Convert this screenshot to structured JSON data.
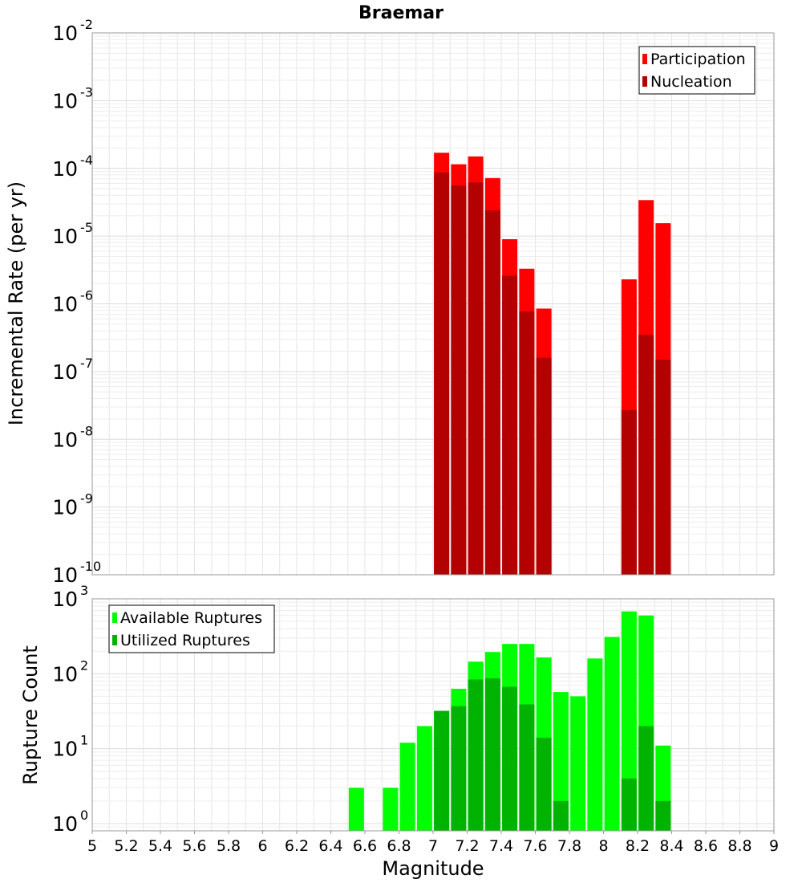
{
  "title": "Braemar",
  "chart_data": [
    {
      "type": "bar",
      "panel": "top",
      "ylabel": "Incremental Rate (per yr)",
      "xlim": [
        5,
        9
      ],
      "ylim": [
        1e-10,
        0.01
      ],
      "yscale": "log",
      "grid": true,
      "legend_position": "top-right",
      "ytick_labels": [
        {
          "value": 1e-10,
          "base": "10",
          "exp": "-10"
        },
        {
          "value": 1e-09,
          "base": "10",
          "exp": "-9"
        },
        {
          "value": 1e-08,
          "base": "10",
          "exp": "-8"
        },
        {
          "value": 1e-07,
          "base": "10",
          "exp": "-7"
        },
        {
          "value": 1e-06,
          "base": "10",
          "exp": "-6"
        },
        {
          "value": 1e-05,
          "base": "10",
          "exp": "-5"
        },
        {
          "value": 0.0001,
          "base": "10",
          "exp": "-4"
        },
        {
          "value": 0.001,
          "base": "10",
          "exp": "-3"
        },
        {
          "value": 0.01,
          "base": "10",
          "exp": "-2"
        }
      ],
      "series": [
        {
          "name": "Participation",
          "color": "#ff0000",
          "points": [
            {
              "x": 7.05,
              "y": 0.00017
            },
            {
              "x": 7.15,
              "y": 0.000115
            },
            {
              "x": 7.25,
              "y": 0.00015
            },
            {
              "x": 7.35,
              "y": 7.2e-05
            },
            {
              "x": 7.45,
              "y": 9e-06
            },
            {
              "x": 7.55,
              "y": 3.3e-06
            },
            {
              "x": 7.65,
              "y": 8.5e-07
            },
            {
              "x": 8.15,
              "y": 2.3e-06
            },
            {
              "x": 8.25,
              "y": 3.4e-05
            },
            {
              "x": 8.35,
              "y": 1.55e-05
            }
          ]
        },
        {
          "name": "Nucleation",
          "color": "#b30000",
          "points": [
            {
              "x": 7.05,
              "y": 8.7e-05
            },
            {
              "x": 7.15,
              "y": 5.6e-05
            },
            {
              "x": 7.25,
              "y": 6.2e-05
            },
            {
              "x": 7.35,
              "y": 2.4e-05
            },
            {
              "x": 7.45,
              "y": 2.6e-06
            },
            {
              "x": 7.55,
              "y": 7.7e-07
            },
            {
              "x": 7.65,
              "y": 1.6e-07
            },
            {
              "x": 8.15,
              "y": 2.7e-08
            },
            {
              "x": 8.25,
              "y": 3.5e-07
            },
            {
              "x": 8.35,
              "y": 1.5e-07
            }
          ]
        }
      ]
    },
    {
      "type": "bar",
      "panel": "bottom",
      "xlabel": "Magnitude",
      "ylabel": "Rupture Count",
      "xlim": [
        5,
        9
      ],
      "ylim": [
        0.8,
        1000
      ],
      "yscale": "log",
      "grid": true,
      "legend_position": "top-left",
      "xticks": [
        "5",
        "5.2",
        "5.4",
        "5.6",
        "5.8",
        "6",
        "6.2",
        "6.4",
        "6.6",
        "6.8",
        "7",
        "7.2",
        "7.4",
        "7.6",
        "7.8",
        "8",
        "8.2",
        "8.4",
        "8.6",
        "8.8",
        "9"
      ],
      "ytick_labels": [
        {
          "value": 1,
          "base": "10",
          "exp": "0"
        },
        {
          "value": 10,
          "base": "10",
          "exp": "1"
        },
        {
          "value": 100,
          "base": "10",
          "exp": "2"
        },
        {
          "value": 1000,
          "base": "10",
          "exp": "3"
        }
      ],
      "series": [
        {
          "name": "Available Ruptures",
          "color": "#00ff00",
          "points": [
            {
              "x": 6.55,
              "y": 3
            },
            {
              "x": 6.75,
              "y": 3
            },
            {
              "x": 6.85,
              "y": 12
            },
            {
              "x": 6.95,
              "y": 20
            },
            {
              "x": 7.05,
              "y": 32
            },
            {
              "x": 7.15,
              "y": 63
            },
            {
              "x": 7.25,
              "y": 145
            },
            {
              "x": 7.35,
              "y": 195
            },
            {
              "x": 7.45,
              "y": 250
            },
            {
              "x": 7.55,
              "y": 250
            },
            {
              "x": 7.65,
              "y": 165
            },
            {
              "x": 7.75,
              "y": 57
            },
            {
              "x": 7.85,
              "y": 50
            },
            {
              "x": 7.95,
              "y": 160
            },
            {
              "x": 8.05,
              "y": 310
            },
            {
              "x": 8.15,
              "y": 680
            },
            {
              "x": 8.25,
              "y": 600
            },
            {
              "x": 8.35,
              "y": 11
            }
          ]
        },
        {
          "name": "Utilized Ruptures",
          "color": "#00b300",
          "points": [
            {
              "x": 7.05,
              "y": 32
            },
            {
              "x": 7.15,
              "y": 37
            },
            {
              "x": 7.25,
              "y": 84
            },
            {
              "x": 7.35,
              "y": 87
            },
            {
              "x": 7.45,
              "y": 67
            },
            {
              "x": 7.55,
              "y": 39
            },
            {
              "x": 7.65,
              "y": 14
            },
            {
              "x": 7.75,
              "y": 2
            },
            {
              "x": 8.15,
              "y": 4
            },
            {
              "x": 8.25,
              "y": 20
            },
            {
              "x": 8.35,
              "y": 2
            }
          ]
        }
      ]
    }
  ]
}
